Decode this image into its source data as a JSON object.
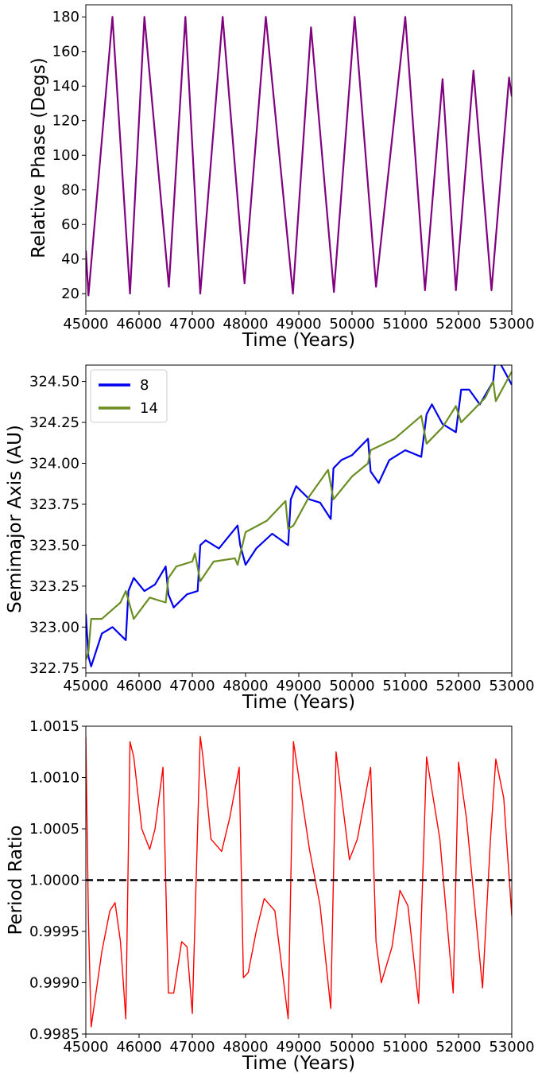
{
  "chart_data": [
    {
      "type": "line",
      "xlabel": "Time (Years)",
      "ylabel": "Relative Phase (Degs)",
      "xlim": [
        45000,
        53000
      ],
      "ylim": [
        10,
        187
      ],
      "xticks": [
        45000,
        46000,
        47000,
        48000,
        49000,
        50000,
        51000,
        52000,
        53000
      ],
      "yticks": [
        20,
        40,
        60,
        80,
        100,
        120,
        140,
        160,
        180
      ],
      "grid": false,
      "series": [
        {
          "color": "#800080",
          "x": [
            45000,
            45050,
            45500,
            45830,
            46100,
            46560,
            46870,
            47150,
            47570,
            47980,
            48380,
            48890,
            49230,
            49660,
            50050,
            50450,
            51000,
            51370,
            51700,
            51950,
            52280,
            52620,
            52950,
            53000
          ],
          "y": [
            45,
            19,
            180,
            20,
            180,
            24,
            180,
            20,
            180,
            26,
            180,
            20,
            174,
            21,
            180,
            24,
            180,
            22,
            144,
            22,
            149,
            22,
            145,
            134
          ]
        }
      ]
    },
    {
      "type": "line",
      "xlabel": "Time (Years)",
      "ylabel": "Semimajor Axis (AU)",
      "xlim": [
        45000,
        53000
      ],
      "ylim": [
        322.72,
        324.6
      ],
      "xticks": [
        45000,
        46000,
        47000,
        48000,
        49000,
        50000,
        51000,
        52000,
        53000
      ],
      "yticks": [
        322.75,
        323.0,
        323.25,
        323.5,
        323.75,
        324.0,
        324.25,
        324.5
      ],
      "ytick_labels": [
        "322.75",
        "323.00",
        "323.25",
        "323.50",
        "323.75",
        "324.00",
        "324.25",
        "324.50"
      ],
      "grid": false,
      "legend_position": "top-left",
      "series": [
        {
          "name": "8",
          "color": "#0000ee",
          "x": [
            45000,
            45050,
            45100,
            45300,
            45500,
            45750,
            45800,
            45900,
            46100,
            46300,
            46500,
            46550,
            46650,
            46900,
            47100,
            47150,
            47250,
            47500,
            47850,
            47900,
            48000,
            48200,
            48500,
            48800,
            48850,
            48950,
            49200,
            49400,
            49600,
            49650,
            49800,
            50000,
            50300,
            50350,
            50500,
            50700,
            51000,
            51300,
            51400,
            51500,
            51700,
            51950,
            52050,
            52200,
            52400,
            52650,
            52700,
            53000
          ],
          "y": [
            323.08,
            322.82,
            322.76,
            322.96,
            323.0,
            322.92,
            323.22,
            323.3,
            323.22,
            323.26,
            323.37,
            323.2,
            323.12,
            323.2,
            323.22,
            323.5,
            323.53,
            323.48,
            323.62,
            323.5,
            323.38,
            323.48,
            323.57,
            323.5,
            323.78,
            323.86,
            323.78,
            323.76,
            323.66,
            323.97,
            324.02,
            324.05,
            324.15,
            323.95,
            323.88,
            324.02,
            324.08,
            324.04,
            324.3,
            324.36,
            324.24,
            324.19,
            324.45,
            324.45,
            324.36,
            324.5,
            324.66,
            324.48
          ]
        },
        {
          "name": "14",
          "color": "#6b8e23",
          "x": [
            45000,
            45050,
            45100,
            45300,
            45650,
            45750,
            45900,
            46200,
            46500,
            46550,
            46700,
            47000,
            47050,
            47150,
            47400,
            47800,
            47850,
            48000,
            48400,
            48750,
            48800,
            48900,
            49200,
            49550,
            49650,
            50000,
            50300,
            50350,
            50800,
            51300,
            51400,
            51700,
            51950,
            52050,
            52200,
            52500,
            52650,
            52700,
            53000
          ],
          "y": [
            322.8,
            322.85,
            323.05,
            323.05,
            323.15,
            323.22,
            323.05,
            323.18,
            323.15,
            323.3,
            323.37,
            323.4,
            323.45,
            323.28,
            323.4,
            323.42,
            323.38,
            323.58,
            323.65,
            323.77,
            323.6,
            323.62,
            323.8,
            323.96,
            323.78,
            323.92,
            324.0,
            324.08,
            324.15,
            324.29,
            324.12,
            324.22,
            324.35,
            324.25,
            324.3,
            324.4,
            324.5,
            324.38,
            324.56
          ]
        }
      ]
    },
    {
      "type": "line",
      "xlabel": "Time (Years)",
      "ylabel": "Period Ratio",
      "xlim": [
        45000,
        53000
      ],
      "ylim": [
        0.9985,
        1.0015
      ],
      "xticks": [
        45000,
        46000,
        47000,
        48000,
        49000,
        50000,
        51000,
        52000,
        53000
      ],
      "yticks": [
        0.9985,
        0.999,
        0.9995,
        1.0,
        1.0005,
        1.001,
        1.0015
      ],
      "ytick_labels": [
        "0.9985",
        "0.9990",
        "0.9995",
        "1.0000",
        "1.0005",
        "1.0010",
        "1.0015"
      ],
      "grid": false,
      "reference_line": {
        "y": 1.0,
        "color": "#000000",
        "style": "dashed"
      },
      "series": [
        {
          "color": "#ff0000",
          "x": [
            45000,
            45050,
            45100,
            45300,
            45450,
            45550,
            45650,
            45750,
            45830,
            45900,
            46050,
            46200,
            46300,
            46450,
            46550,
            46650,
            46800,
            46900,
            47000,
            47150,
            47200,
            47350,
            47550,
            47700,
            47880,
            47960,
            48050,
            48200,
            48350,
            48550,
            48800,
            48900,
            49200,
            49400,
            49600,
            49700,
            49950,
            50100,
            50350,
            50450,
            50550,
            50750,
            50900,
            51050,
            51250,
            51400,
            51650,
            51900,
            52000,
            52150,
            52450,
            52600,
            52700,
            52850,
            53000
          ],
          "y": [
            1.0014,
            0.9996,
            0.99857,
            0.9993,
            0.9997,
            0.99978,
            0.9994,
            0.99865,
            1.00135,
            1.0012,
            1.0005,
            1.0003,
            1.0005,
            1.0011,
            0.9989,
            0.9989,
            0.9994,
            0.99935,
            0.9987,
            1.0014,
            1.0012,
            1.0004,
            1.00028,
            1.0006,
            1.0011,
            0.99905,
            0.9991,
            0.9995,
            0.99982,
            0.9997,
            0.99865,
            1.00135,
            1.0003,
            0.99975,
            0.99875,
            1.00125,
            1.0002,
            1.0004,
            1.0011,
            0.9994,
            0.999,
            0.99935,
            0.9999,
            0.99975,
            0.9988,
            1.0012,
            1.0004,
            0.9989,
            1.00115,
            1.0006,
            0.99895,
            1.0004,
            1.00118,
            1.0008,
            0.99965
          ]
        }
      ]
    }
  ]
}
